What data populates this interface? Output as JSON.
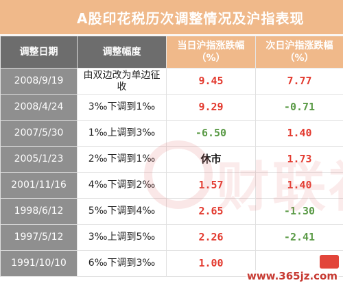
{
  "title": "A股印花税历次调整情况及沪指表现",
  "headers": {
    "date": "调整日期",
    "adjustment": "调整幅度",
    "same_day": "当日沪指涨跌幅（%）",
    "next_day": "次日沪指涨跌幅（%）"
  },
  "rows": [
    {
      "date": "2008/9/19",
      "adjustment": "由双边改为单边征收",
      "same_day": "9.45",
      "next_day": "7.77",
      "same_color": "#e33a2f",
      "next_color": "#e33a2f"
    },
    {
      "date": "2008/4/24",
      "adjustment": "3‰下调到1‰",
      "same_day": "9.29",
      "next_day": "-0.71",
      "same_color": "#e33a2f",
      "next_color": "#5a9a46"
    },
    {
      "date": "2007/5/30",
      "adjustment": "1‰上调到3‰",
      "same_day": "-6.50",
      "next_day": "1.40",
      "same_color": "#5a9a46",
      "next_color": "#e33a2f"
    },
    {
      "date": "2005/1/23",
      "adjustment": "2‰下调到1‰",
      "same_day": "休市",
      "next_day": "1.73",
      "same_color": "#111111",
      "next_color": "#e33a2f"
    },
    {
      "date": "2001/11/16",
      "adjustment": "4‰下调到2‰",
      "same_day": "1.57",
      "next_day": "1.40",
      "same_color": "#e33a2f",
      "next_color": "#e33a2f"
    },
    {
      "date": "1998/6/12",
      "adjustment": "5‰下调到4‰",
      "same_day": "2.65",
      "next_day": "-1.30",
      "same_color": "#e33a2f",
      "next_color": "#5a9a46"
    },
    {
      "date": "1997/5/12",
      "adjustment": "3‰上调到5‰",
      "same_day": "2.26",
      "next_day": "-2.41",
      "same_color": "#e33a2f",
      "next_color": "#5a9a46"
    },
    {
      "date": "1991/10/10",
      "adjustment": "6‰下调到3‰",
      "same_day": "1.00",
      "next_day": "",
      "same_color": "#e33a2f",
      "next_color": "#e33a2f"
    }
  ],
  "watermark": {
    "text": "财联社"
  },
  "site_mark": "www.365jz.com"
}
